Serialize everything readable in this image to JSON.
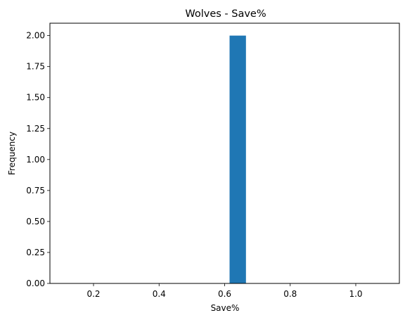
{
  "chart_data": {
    "type": "bar",
    "title": "Wolves - Save%",
    "xlabel": "Save%",
    "ylabel": "Frequency",
    "xlim": [
      0.067,
      1.133
    ],
    "ylim": [
      0,
      2.1
    ],
    "xticks": [
      0.2,
      0.4,
      0.6,
      0.8,
      1.0
    ],
    "xtick_labels": [
      "0.2",
      "0.4",
      "0.6",
      "0.8",
      "1.0"
    ],
    "yticks": [
      0,
      0.25,
      0.5,
      0.75,
      1.0,
      1.25,
      1.5,
      1.75,
      2.0
    ],
    "ytick_labels": [
      "0.00",
      "0.25",
      "0.50",
      "0.75",
      "1.00",
      "1.25",
      "1.50",
      "1.75",
      "2.00"
    ],
    "bins": [
      {
        "x0": 0.615,
        "x1": 0.665,
        "count": 2
      }
    ],
    "bar_color": "#1f77b4",
    "grid": false
  }
}
